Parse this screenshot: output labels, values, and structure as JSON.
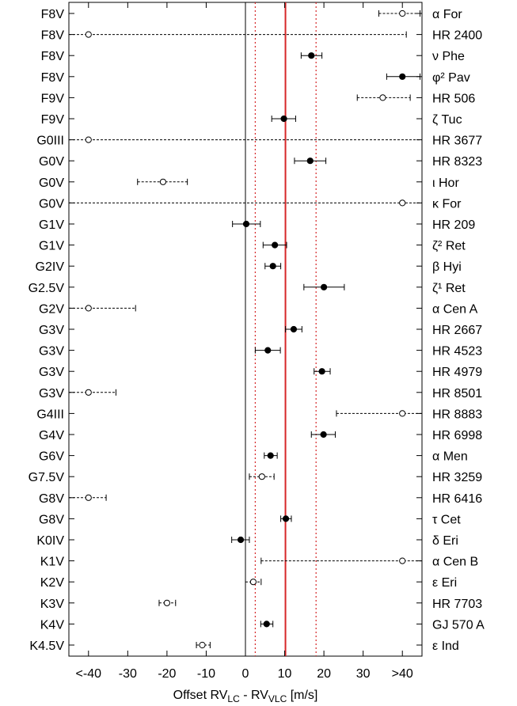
{
  "chart_data": {
    "type": "scatter",
    "xlabel_main": "Offset RV",
    "xlabel_sub1": "LC",
    "xlabel_mid": " - RV",
    "xlabel_sub2": "VLC",
    "xlabel_unit": " [m/s]",
    "xlim": [
      -45,
      45
    ],
    "x_ticks": [
      {
        "value": -40,
        "label": "<-40"
      },
      {
        "value": -30,
        "label": "-30"
      },
      {
        "value": -20,
        "label": "-20"
      },
      {
        "value": -10,
        "label": "-10"
      },
      {
        "value": 0,
        "label": "0"
      },
      {
        "value": 10,
        "label": "10"
      },
      {
        "value": 20,
        "label": "20"
      },
      {
        "value": 30,
        "label": "30"
      },
      {
        "value": 40,
        "label": ">40"
      }
    ],
    "reference_lines": {
      "zero": 0,
      "mean": 10.2,
      "lower": 2.5,
      "upper": 18
    },
    "colors": {
      "mean": "#d62728",
      "dotted": "#d62728",
      "axis": "#000000"
    },
    "stars": [
      {
        "type": "F8V",
        "name": "α For",
        "x": 40,
        "lo": 34,
        "hi": 44.5,
        "filled": false
      },
      {
        "type": "F8V",
        "name": "HR 2400",
        "x": -40,
        "lo": -45,
        "hi": 41,
        "filled": false
      },
      {
        "type": "F8V",
        "name": "ν Phe",
        "x": 16.8,
        "lo": 14.2,
        "hi": 19.5,
        "filled": true
      },
      {
        "type": "F8V",
        "name": "φ² Pav",
        "x": 40,
        "lo": 36,
        "hi": 44.5,
        "filled": true
      },
      {
        "type": "F9V",
        "name": "HR 506",
        "x": 35,
        "lo": 28.5,
        "hi": 42,
        "filled": false
      },
      {
        "type": "F9V",
        "name": "ζ Tuc",
        "x": 9.8,
        "lo": 6.7,
        "hi": 12.8,
        "filled": true
      },
      {
        "type": "G0III",
        "name": "HR 3677",
        "x": -40,
        "lo": -45,
        "hi": 45,
        "filled": false
      },
      {
        "type": "G0V",
        "name": "HR 8323",
        "x": 16.5,
        "lo": 12.5,
        "hi": 20.5,
        "filled": true
      },
      {
        "type": "G0V",
        "name": "ι Hor",
        "x": -21,
        "lo": -27.5,
        "hi": -14.8,
        "filled": false
      },
      {
        "type": "G0V",
        "name": "κ For",
        "x": 40,
        "lo": -45,
        "hi": 45,
        "filled": false
      },
      {
        "type": "G1V",
        "name": "HR 209",
        "x": 0.2,
        "lo": -3.3,
        "hi": 3.8,
        "filled": true
      },
      {
        "type": "G1V",
        "name": "ζ² Ret",
        "x": 7.5,
        "lo": 4.5,
        "hi": 10.5,
        "filled": true
      },
      {
        "type": "G2IV",
        "name": "β Hyi",
        "x": 7,
        "lo": 5,
        "hi": 9,
        "filled": true
      },
      {
        "type": "G2.5V",
        "name": "ζ¹ Ret",
        "x": 20,
        "lo": 14.9,
        "hi": 25.2,
        "filled": true
      },
      {
        "type": "G2V",
        "name": "α Cen A",
        "x": -40,
        "lo": -45,
        "hi": -28,
        "filled": false
      },
      {
        "type": "G3V",
        "name": "HR 2667",
        "x": 12.3,
        "lo": 10.2,
        "hi": 14.4,
        "filled": true
      },
      {
        "type": "G3V",
        "name": "HR 4523",
        "x": 5.7,
        "lo": 2.5,
        "hi": 8.9,
        "filled": true
      },
      {
        "type": "G3V",
        "name": "HR 4979",
        "x": 19.5,
        "lo": 17.5,
        "hi": 21.6,
        "filled": true
      },
      {
        "type": "G3V",
        "name": "HR 8501",
        "x": -40,
        "lo": -45,
        "hi": -33,
        "filled": false
      },
      {
        "type": "G4III",
        "name": "HR 8883",
        "x": 40,
        "lo": 23.2,
        "hi": 45,
        "filled": false
      },
      {
        "type": "G4V",
        "name": "HR 6998",
        "x": 19.9,
        "lo": 16.8,
        "hi": 22.9,
        "filled": true
      },
      {
        "type": "G6V",
        "name": "α Men",
        "x": 6.4,
        "lo": 4.8,
        "hi": 8.1,
        "filled": true
      },
      {
        "type": "G7.5V",
        "name": "HR 3259",
        "x": 4.2,
        "lo": 1,
        "hi": 7.3,
        "filled": false
      },
      {
        "type": "G8V",
        "name": "HR 6416",
        "x": -40,
        "lo": -45,
        "hi": -35.5,
        "filled": false
      },
      {
        "type": "G8V",
        "name": "τ Cet",
        "x": 10.3,
        "lo": 9,
        "hi": 11.7,
        "filled": true
      },
      {
        "type": "K0IV",
        "name": "δ Eri",
        "x": -1.2,
        "lo": -3.5,
        "hi": 1,
        "filled": true
      },
      {
        "type": "K1V",
        "name": "α Cen B",
        "x": 40,
        "lo": 4,
        "hi": 45,
        "filled": false
      },
      {
        "type": "K2V",
        "name": "ε Eri",
        "x": 2,
        "lo": 0,
        "hi": 4,
        "filled": false
      },
      {
        "type": "K3V",
        "name": "HR 7703",
        "x": -20,
        "lo": -22,
        "hi": -17.8,
        "filled": false
      },
      {
        "type": "K4V",
        "name": "GJ 570 A",
        "x": 5.4,
        "lo": 3.9,
        "hi": 7,
        "filled": true
      },
      {
        "type": "K4.5V",
        "name": "ε Ind",
        "x": -11,
        "lo": -12.5,
        "hi": -9,
        "filled": false
      }
    ]
  }
}
